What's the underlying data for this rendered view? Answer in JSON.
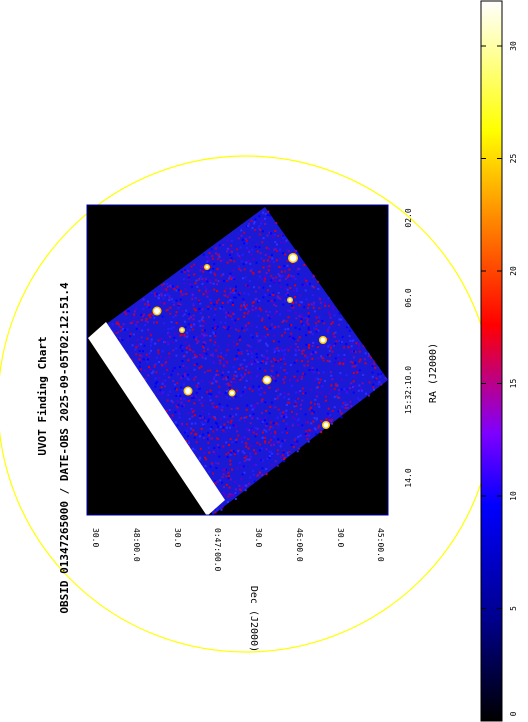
{
  "chart_data": {
    "type": "heatmap",
    "title": "UVOT Finding Chart",
    "subtitle": "OBSID 01347265000 / DATE-OBS 2025-09-05T02:12:51.4",
    "xlabel": "RA (J2000)",
    "ylabel": "Dec (J2000)",
    "ra_ticks": [
      "14.0",
      "15:32:10.0",
      "06.0",
      "02.0"
    ],
    "dec_ticks": [
      "30.0",
      "48:00.0",
      "30.0",
      "0:47:00.0",
      "30.0",
      "46:00.0",
      "30.0",
      "45:00.0"
    ],
    "colorbar": {
      "ticks": [
        0,
        5,
        10,
        15,
        20,
        25,
        30
      ],
      "range": [
        0,
        32
      ],
      "colormap": [
        "#000000",
        "#00008b",
        "#0000ff",
        "#7f00ff",
        "#ff0000",
        "#ff8c00",
        "#ffff00",
        "#ffffff"
      ]
    },
    "colors": {
      "circle": "#ffff00",
      "frame": "#0000aa",
      "background": "#000000",
      "mask": "#ffffff"
    }
  }
}
